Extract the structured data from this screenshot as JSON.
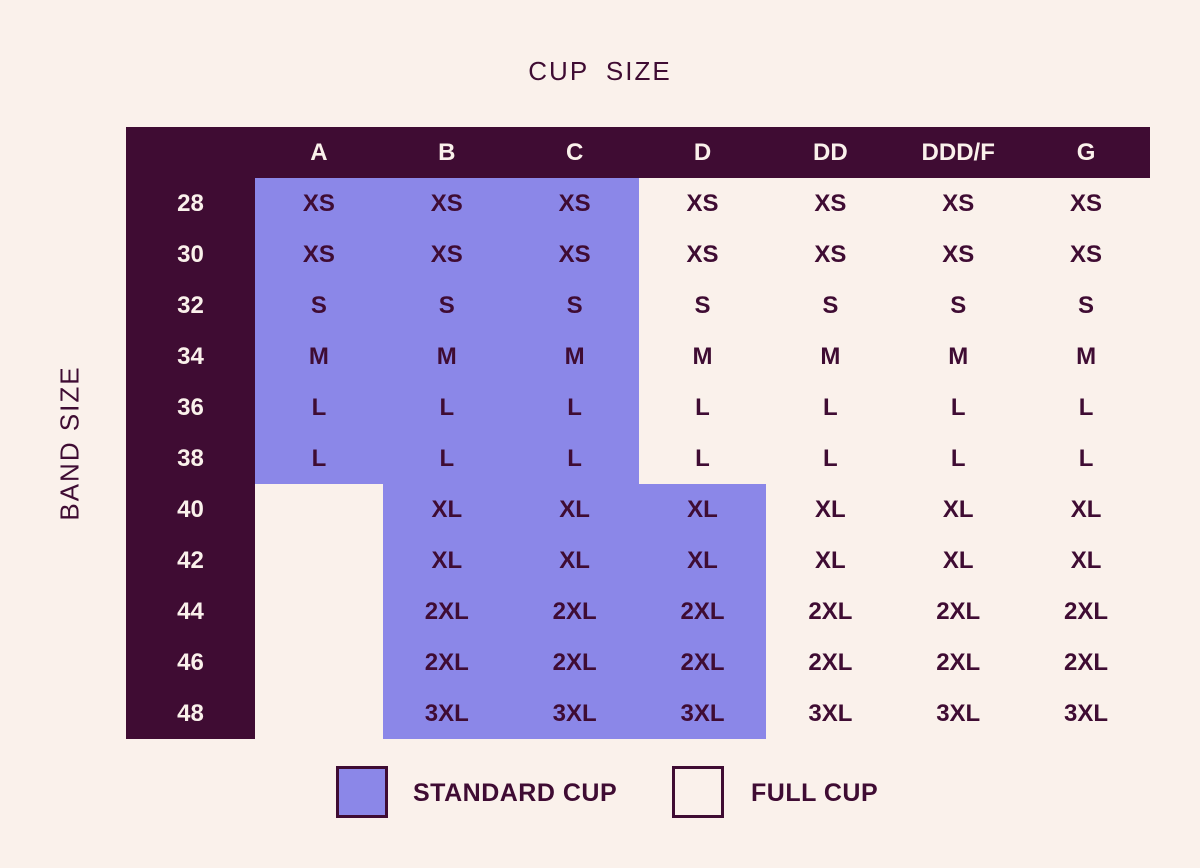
{
  "title": "CUP SIZE",
  "y_axis_label": "BAND SIZE",
  "colors": {
    "background": "#FAF1EB",
    "dark_purple": "#3F0C33",
    "standard_cup_highlight": "#8B87E8",
    "light_text": "#FAF1EB"
  },
  "chart_data": {
    "type": "table",
    "title": "CUP SIZE",
    "row_axis_label": "BAND SIZE",
    "columns": [
      "A",
      "B",
      "C",
      "D",
      "DD",
      "DDD/F",
      "G"
    ],
    "rows": [
      {
        "band": "28",
        "cells": [
          "XS",
          "XS",
          "XS",
          "XS",
          "XS",
          "XS",
          "XS"
        ]
      },
      {
        "band": "30",
        "cells": [
          "XS",
          "XS",
          "XS",
          "XS",
          "XS",
          "XS",
          "XS"
        ]
      },
      {
        "band": "32",
        "cells": [
          "S",
          "S",
          "S",
          "S",
          "S",
          "S",
          "S"
        ]
      },
      {
        "band": "34",
        "cells": [
          "M",
          "M",
          "M",
          "M",
          "M",
          "M",
          "M"
        ]
      },
      {
        "band": "36",
        "cells": [
          "L",
          "L",
          "L",
          "L",
          "L",
          "L",
          "L"
        ]
      },
      {
        "band": "38",
        "cells": [
          "L",
          "L",
          "L",
          "L",
          "L",
          "L",
          "L"
        ]
      },
      {
        "band": "40",
        "cells": [
          "",
          "XL",
          "XL",
          "XL",
          "XL",
          "XL",
          "XL"
        ]
      },
      {
        "band": "42",
        "cells": [
          "",
          "XL",
          "XL",
          "XL",
          "XL",
          "XL",
          "XL"
        ]
      },
      {
        "band": "44",
        "cells": [
          "",
          "2XL",
          "2XL",
          "2XL",
          "2XL",
          "2XL",
          "2XL"
        ]
      },
      {
        "band": "46",
        "cells": [
          "",
          "2XL",
          "2XL",
          "2XL",
          "2XL",
          "2XL",
          "2XL"
        ]
      },
      {
        "band": "48",
        "cells": [
          "",
          "3XL",
          "3XL",
          "3XL",
          "3XL",
          "3XL",
          "3XL"
        ]
      }
    ],
    "standard_cup_region": {
      "bands_28_to_38_columns": [
        "A",
        "B",
        "C"
      ],
      "bands_40_to_48_columns": [
        "B",
        "C",
        "D"
      ]
    }
  },
  "legend": {
    "items": [
      {
        "label": "STANDARD CUP",
        "fill": "#8B87E8"
      },
      {
        "label": "FULL CUP",
        "fill": "#FAF1EB"
      }
    ]
  }
}
